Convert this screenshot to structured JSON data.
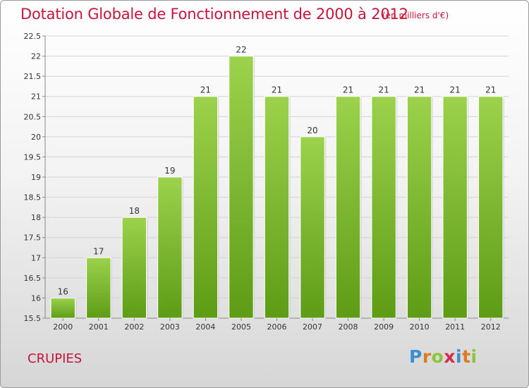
{
  "title": "Dotation Globale de Fonctionnement de 2000 à 2012",
  "subtitle": "(en milliers d'€)",
  "place": "CRUPIES",
  "logo": {
    "text": "Proxiti"
  },
  "colors": {
    "title": "#c8143c",
    "bar_light": "#9cd24c",
    "bar_dark": "#5e9c16"
  },
  "chart_data": {
    "type": "bar",
    "title": "Dotation Globale de Fonctionnement de 2000 à 2012",
    "subtitle": "(en milliers d'€)",
    "categories": [
      "2000",
      "2001",
      "2002",
      "2003",
      "2004",
      "2005",
      "2006",
      "2007",
      "2008",
      "2009",
      "2010",
      "2011",
      "2012"
    ],
    "values": [
      16,
      17,
      18,
      19,
      21,
      22,
      21,
      20,
      21,
      21,
      21,
      21,
      21
    ],
    "data_labels": [
      "16",
      "17",
      "18",
      "19",
      "21",
      "22",
      "21",
      "20",
      "21",
      "21",
      "21",
      "21",
      "21"
    ],
    "ylim": [
      15.5,
      22.5
    ],
    "yticks": [
      "15.5",
      "16",
      "16.5",
      "17",
      "17.5",
      "18",
      "18.5",
      "19",
      "19.5",
      "20",
      "20.5",
      "21",
      "21.5",
      "22",
      "22.5"
    ],
    "grid": true,
    "xlabel": "",
    "ylabel": ""
  }
}
